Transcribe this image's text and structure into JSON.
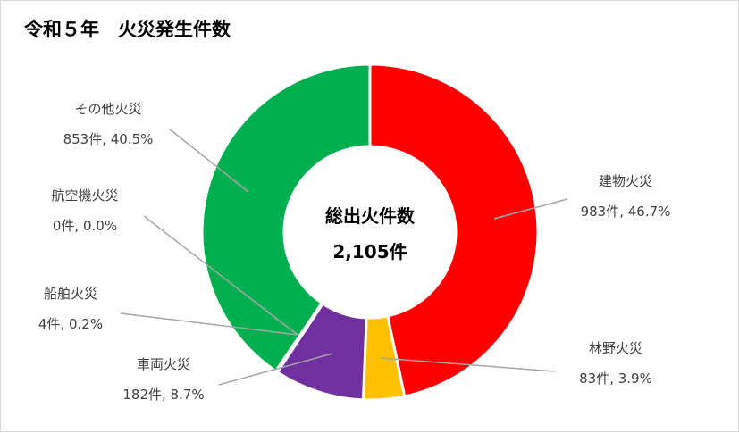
{
  "chart_data": {
    "type": "pie",
    "variant": "donut",
    "title": "令和５年　火災発生件数",
    "center_label": {
      "title": "総出火件数",
      "value": "2,105件"
    },
    "total": 2105,
    "unit": "件",
    "slices": [
      {
        "name": "建物火災",
        "value": 983,
        "percent": 46.7,
        "color": "#ff0000",
        "label_value": "983件, 46.7%"
      },
      {
        "name": "林野火災",
        "value": 83,
        "percent": 3.9,
        "color": "#ffc000",
        "label_value": "83件, 3.9%"
      },
      {
        "name": "車両火災",
        "value": 182,
        "percent": 8.7,
        "color": "#7030a0",
        "label_value": "182件, 8.7%"
      },
      {
        "name": "船舶火災",
        "value": 4,
        "percent": 0.2,
        "color": "#4472c4",
        "label_value": "4件, 0.2%"
      },
      {
        "name": "航空機火災",
        "value": 0,
        "percent": 0.0,
        "color": "#a5a5a5",
        "label_value": "0件, 0.0%"
      },
      {
        "name": "その他火災",
        "value": 853,
        "percent": 40.5,
        "color": "#00b050",
        "label_value": "853件, 40.5%"
      }
    ],
    "legend": "none",
    "data_labels": "outside-with-leader-lines"
  }
}
